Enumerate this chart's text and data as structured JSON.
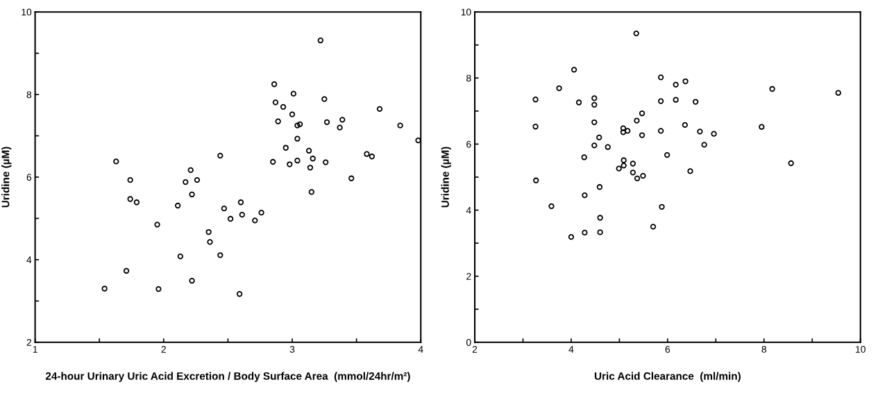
{
  "chart_data": [
    {
      "type": "scatter",
      "xlabel": "24-hour Urinary Uric Acid Excretion / Body Surface Area  (mmol/24hr/m²)",
      "ylabel": "Uridine (µM)",
      "marker": "circle",
      "grid": false,
      "legend": false,
      "xlim": [
        1,
        4
      ],
      "ylim": [
        2,
        10
      ],
      "xticks": [
        1,
        {
          "value": 1.5,
          "label": null
        },
        2,
        {
          "value": 2.5,
          "label": null
        },
        3,
        {
          "value": 3.5,
          "label": null
        },
        4
      ],
      "yticks": [
        2,
        {
          "value": 3,
          "label": null
        },
        4,
        {
          "value": 5,
          "label": null
        },
        6,
        {
          "value": 7,
          "label": null
        },
        8,
        {
          "value": 9,
          "label": null
        },
        10
      ],
      "series": [
        {
          "color": "#000000",
          "x": [
            1.63,
            1.74,
            1.74,
            1.79,
            1.54,
            1.71,
            1.95,
            1.96,
            2.11,
            2.13,
            2.17,
            2.21,
            2.22,
            2.26,
            2.22,
            2.35,
            2.36,
            2.44,
            2.44,
            3.22,
            2.86,
            3.01,
            2.87,
            2.93,
            3.25,
            3.0,
            2.89,
            3.04,
            3.06,
            3.68,
            3.27,
            3.39,
            3.37,
            3.84,
            3.98,
            3.04,
            2.95,
            3.13,
            3.16,
            2.85,
            2.98,
            3.04,
            3.26,
            3.14,
            3.58,
            3.62,
            3.46,
            3.15,
            2.6,
            2.47,
            2.61,
            2.76,
            2.52,
            2.71,
            2.59
          ],
          "values": [
            6.38,
            5.93,
            5.47,
            5.39,
            3.3,
            3.73,
            4.85,
            3.29,
            5.31,
            4.08,
            5.88,
            6.17,
            5.58,
            5.93,
            3.49,
            4.67,
            4.43,
            4.11,
            6.52,
            9.31,
            8.25,
            8.02,
            7.81,
            7.7,
            7.89,
            7.52,
            7.35,
            7.25,
            7.28,
            7.65,
            7.33,
            7.39,
            7.2,
            7.25,
            6.89,
            6.93,
            6.71,
            6.64,
            6.45,
            6.37,
            6.31,
            6.4,
            6.36,
            6.23,
            6.56,
            6.5,
            5.97,
            5.64,
            5.39,
            5.24,
            5.09,
            5.14,
            4.99,
            4.95,
            3.17
          ]
        }
      ]
    },
    {
      "type": "scatter",
      "xlabel": "Uric Acid Clearance  (ml/min)",
      "ylabel": "Uridine (µM)",
      "marker": "circle",
      "grid": false,
      "legend": false,
      "xlim": [
        2,
        10
      ],
      "ylim": [
        0,
        10
      ],
      "xticks": [
        2,
        {
          "value": 3,
          "label": null
        },
        4,
        {
          "value": 5,
          "label": null
        },
        6,
        {
          "value": 7,
          "label": null
        },
        8,
        {
          "value": 9,
          "label": null
        },
        10
      ],
      "yticks": [
        0,
        {
          "value": 1,
          "label": null
        },
        2,
        {
          "value": 3,
          "label": null
        },
        4,
        {
          "value": 5,
          "label": null
        },
        6,
        {
          "value": 7,
          "label": null
        },
        8,
        {
          "value": 9,
          "label": null
        },
        10
      ],
      "series": [
        {
          "color": "#000000",
          "x": [
            3.26,
            3.26,
            3.27,
            3.59,
            3.75,
            4.0,
            4.06,
            4.16,
            4.28,
            4.28,
            4.27,
            4.48,
            4.48,
            4.48,
            4.48,
            4.58,
            4.59,
            4.6,
            4.6,
            4.76,
            4.99,
            5.08,
            5.08,
            5.17,
            5.09,
            5.09,
            5.28,
            5.28,
            5.37,
            5.49,
            5.35,
            5.36,
            5.47,
            5.47,
            5.7,
            5.86,
            5.86,
            5.86,
            6.17,
            6.17,
            6.37,
            6.58,
            6.36,
            6.67,
            6.96,
            6.76,
            5.99,
            6.47,
            5.88,
            7.95,
            8.17,
            8.56,
            9.54
          ],
          "values": [
            7.35,
            6.53,
            4.9,
            4.12,
            7.69,
            3.19,
            8.25,
            7.26,
            3.32,
            4.45,
            5.6,
            7.39,
            7.19,
            6.66,
            5.96,
            6.2,
            4.7,
            3.77,
            3.33,
            5.91,
            5.26,
            6.48,
            6.36,
            6.4,
            5.51,
            5.35,
            5.41,
            5.14,
            4.96,
            5.04,
            9.35,
            6.71,
            6.93,
            6.27,
            3.5,
            8.02,
            7.3,
            6.4,
            7.8,
            7.34,
            7.9,
            7.28,
            6.58,
            6.38,
            6.31,
            5.98,
            5.67,
            5.18,
            4.1,
            6.52,
            7.67,
            5.42,
            7.55
          ]
        }
      ]
    }
  ]
}
